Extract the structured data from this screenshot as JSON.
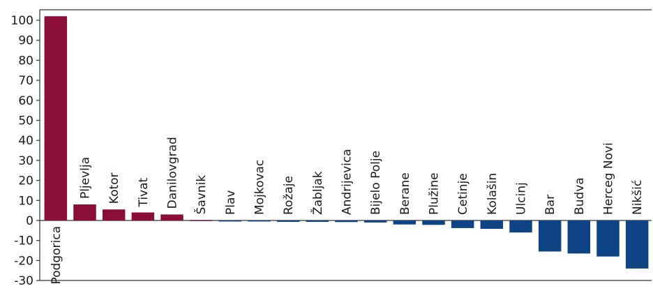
{
  "chart_data": {
    "type": "bar",
    "categories": [
      "Podgorica",
      "Pljevlja",
      "Kotor",
      "Tivat",
      "Danilovgrad",
      "Šavnik",
      "Plav",
      "Mojkovac",
      "Rožaje",
      "Žabljak",
      "Andrijevica",
      "Bijelo Polje",
      "Berane",
      "Plužine",
      "Cetinje",
      "Kolašin",
      "Ulcinj",
      "Bar",
      "Budva",
      "Herceg Novi",
      "Nikšić"
    ],
    "values": [
      102,
      8,
      5.5,
      4,
      3,
      0.2,
      -0.4,
      -0.5,
      -0.7,
      -0.7,
      -0.8,
      -1,
      -2,
      -2.2,
      -3.8,
      -4.2,
      -6,
      -15.5,
      -16.5,
      -18,
      -24
    ],
    "ylim": [
      -30,
      105
    ],
    "yticks": [
      100,
      90,
      80,
      70,
      60,
      50,
      40,
      30,
      20,
      10,
      0,
      -10,
      -20,
      -30
    ],
    "title": "",
    "xlabel": "",
    "ylabel": "",
    "grid": false,
    "colors": {
      "positive": "#8b0e3a",
      "negative": "#0e4483",
      "axis": "#333333"
    }
  }
}
